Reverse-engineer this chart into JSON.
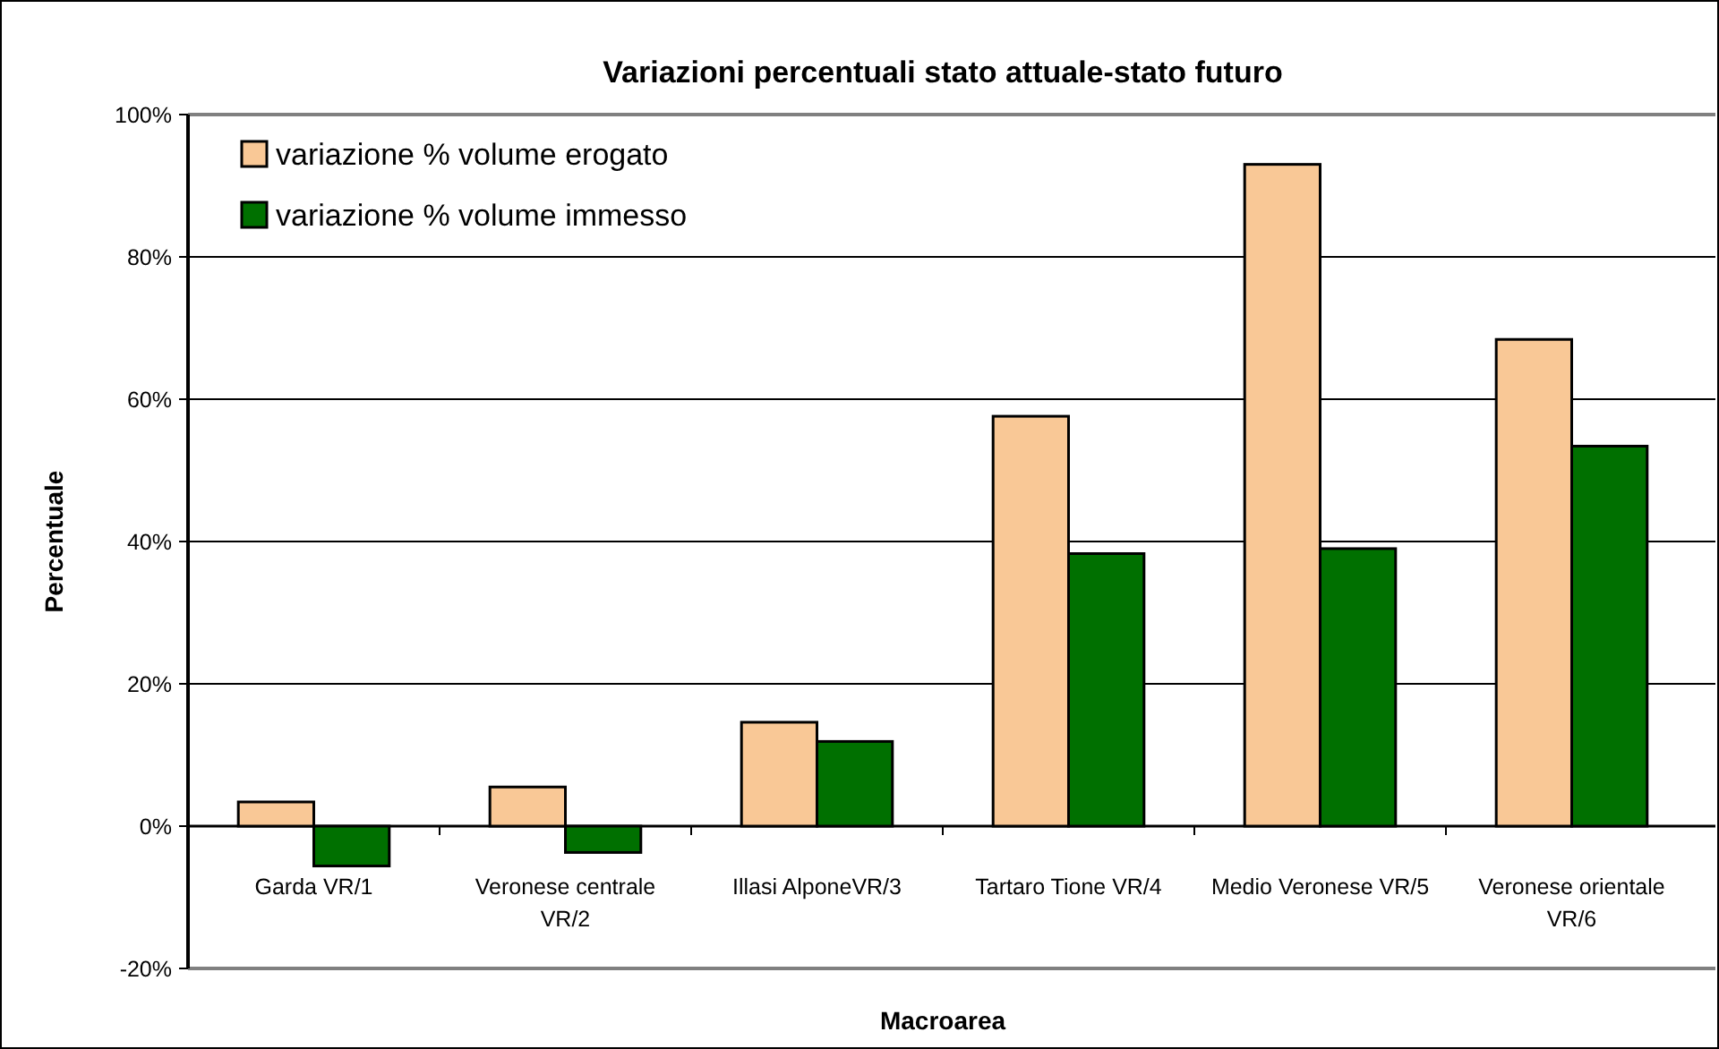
{
  "chart_data": {
    "type": "bar",
    "title": "Variazioni percentuali stato attuale-stato futuro",
    "xlabel": "Macroarea",
    "ylabel": "Percentuale",
    "categories": [
      "Garda VR/1",
      "Veronese centrale VR/2",
      "Illasi AlponeVR/3",
      "Tartaro Tione VR/4",
      "Medio Veronese VR/5",
      "Veronese orientale VR/6"
    ],
    "series": [
      {
        "name": "variazione % volume erogato",
        "color": "#f9c896",
        "values": [
          3.4,
          5.5,
          14.6,
          57.6,
          93.0,
          68.4
        ]
      },
      {
        "name": "variazione % volume immesso",
        "color": "#007000",
        "values": [
          -5.6,
          -3.7,
          11.9,
          38.3,
          39.0,
          53.4
        ]
      }
    ],
    "ylim": [
      -20,
      100
    ],
    "yticks": [
      {
        "value": -20,
        "label": "-20%"
      },
      {
        "value": 0,
        "label": "0%"
      },
      {
        "value": 20,
        "label": "20%"
      },
      {
        "value": 40,
        "label": "40%"
      },
      {
        "value": 60,
        "label": "60%"
      },
      {
        "value": 80,
        "label": "80%"
      },
      {
        "value": 100,
        "label": "100%"
      }
    ],
    "grid": "y",
    "legend": "top left"
  }
}
